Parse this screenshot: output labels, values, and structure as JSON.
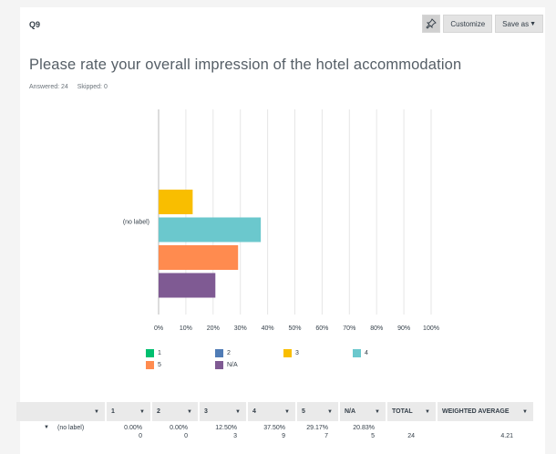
{
  "question": {
    "number": "Q9",
    "title": "Please rate your overall impression of the hotel accommodation",
    "answered": "Answered: 24",
    "skipped": "Skipped: 0"
  },
  "toolbar": {
    "customize_label": "Customize",
    "saveas_label": "Save as",
    "pin_icon": "pin-icon"
  },
  "chart_data": {
    "type": "bar",
    "orientation": "horizontal",
    "categories": [
      "(no label)"
    ],
    "series": [
      {
        "name": "1",
        "values": [
          0.0
        ],
        "color": "#00bf6f"
      },
      {
        "name": "2",
        "values": [
          0.0
        ],
        "color": "#507cb6"
      },
      {
        "name": "3",
        "values": [
          12.5
        ],
        "color": "#f9be00"
      },
      {
        "name": "4",
        "values": [
          37.5
        ],
        "color": "#6bc8cd"
      },
      {
        "name": "5",
        "values": [
          29.17
        ],
        "color": "#ff8b4f"
      },
      {
        "name": "N/A",
        "values": [
          20.83
        ],
        "color": "#7f5a93"
      }
    ],
    "x_ticks": [
      "0%",
      "10%",
      "20%",
      "30%",
      "40%",
      "50%",
      "60%",
      "70%",
      "80%",
      "90%",
      "100%"
    ],
    "xlim": [
      0,
      100
    ],
    "grid": true,
    "legend": "bottom"
  },
  "table": {
    "headers": [
      "1",
      "2",
      "3",
      "4",
      "5",
      "N/A",
      "TOTAL",
      "WEIGHTED AVERAGE"
    ],
    "row": {
      "label": "(no label)",
      "percents": [
        "0.00%",
        "0.00%",
        "12.50%",
        "37.50%",
        "29.17%",
        "20.83%"
      ],
      "counts": [
        "0",
        "0",
        "3",
        "9",
        "7",
        "5"
      ],
      "total": "24",
      "weighted_average": "4.21"
    }
  },
  "icons": {
    "dropdown": "▼",
    "row_toggle": "▼"
  }
}
